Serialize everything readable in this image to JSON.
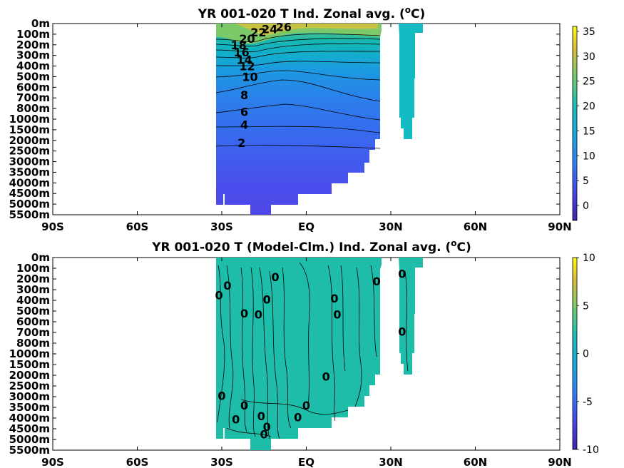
{
  "chart_data": [
    {
      "type": "heatmap",
      "title": "YR 001-020 T Ind. Zonal avg. (",
      "title_sup": "o",
      "title_unit": "C)",
      "x_ticks": [
        "90S",
        "60S",
        "30S",
        "EQ",
        "30N",
        "60N",
        "90N"
      ],
      "x_values": [
        -90,
        -60,
        -30,
        0,
        30,
        60,
        90
      ],
      "xlim": [
        -90,
        90
      ],
      "y_ticks": [
        "0m",
        "100m",
        "200m",
        "300m",
        "400m",
        "500m",
        "600m",
        "700m",
        "800m",
        "1000m",
        "1500m",
        "2000m",
        "2500m",
        "3000m",
        "3500m",
        "4000m",
        "4500m",
        "5000m",
        "5500m"
      ],
      "colorbar_ticks": [
        "35",
        "30",
        "25",
        "20",
        "15",
        "10",
        "5",
        "0"
      ],
      "colorbar_values": [
        35,
        30,
        25,
        20,
        15,
        10,
        5,
        0
      ],
      "clim": [
        -3,
        36
      ],
      "colormap": "parula",
      "contour_levels": [
        2,
        4,
        6,
        8,
        10,
        12,
        14,
        16,
        18,
        20,
        22,
        24,
        26
      ],
      "contour_labels": [
        {
          "text": "26",
          "lat": -8,
          "depth_level": 0.3
        },
        {
          "text": "24",
          "lat": -13,
          "depth_level": 0.5
        },
        {
          "text": "22",
          "lat": -17,
          "depth_level": 0.8
        },
        {
          "text": "20",
          "lat": -21,
          "depth_level": 1.4
        },
        {
          "text": "18",
          "lat": -24,
          "depth_level": 2.0
        },
        {
          "text": "16",
          "lat": -23,
          "depth_level": 2.7
        },
        {
          "text": "14",
          "lat": -22,
          "depth_level": 3.4
        },
        {
          "text": "12",
          "lat": -21,
          "depth_level": 4.0
        },
        {
          "text": "10",
          "lat": -20,
          "depth_level": 5.0
        },
        {
          "text": "8",
          "lat": -22,
          "depth_level": 6.7
        },
        {
          "text": "6",
          "lat": -22,
          "depth_level": 8.3
        },
        {
          "text": "4",
          "lat": -22,
          "depth_level": 9.5
        },
        {
          "text": "2",
          "lat": -23,
          "depth_level": 11.2
        }
      ]
    },
    {
      "type": "heatmap",
      "title": "YR 001-020 T (Model-Clm.) Ind. Zonal avg. (",
      "title_sup": "o",
      "title_unit": "C)",
      "x_ticks": [
        "90S",
        "60S",
        "30S",
        "EQ",
        "30N",
        "60N",
        "90N"
      ],
      "x_values": [
        -90,
        -60,
        -30,
        0,
        30,
        60,
        90
      ],
      "xlim": [
        -90,
        90
      ],
      "y_ticks": [
        "0m",
        "100m",
        "200m",
        "300m",
        "400m",
        "500m",
        "600m",
        "700m",
        "800m",
        "1000m",
        "1500m",
        "2000m",
        "2500m",
        "3000m",
        "3500m",
        "4000m",
        "4500m",
        "5000m",
        "5500m"
      ],
      "colorbar_ticks": [
        "10",
        "5",
        "0",
        "-5",
        "-10"
      ],
      "colorbar_values": [
        10,
        5,
        0,
        -5,
        -10
      ],
      "clim": [
        -10,
        10
      ],
      "colormap": "parula",
      "contour_levels": [
        0
      ],
      "contour_labels": [
        {
          "text": "0",
          "lat": -31,
          "depth_level": 3.5
        },
        {
          "text": "0",
          "lat": -28,
          "depth_level": 2.6
        },
        {
          "text": "0",
          "lat": -22,
          "depth_level": 5.2
        },
        {
          "text": "0",
          "lat": -17,
          "depth_level": 5.3
        },
        {
          "text": "0",
          "lat": -14,
          "depth_level": 3.9
        },
        {
          "text": "0",
          "lat": -11,
          "depth_level": 1.8
        },
        {
          "text": "0",
          "lat": 10,
          "depth_level": 3.8
        },
        {
          "text": "0",
          "lat": 11,
          "depth_level": 5.3
        },
        {
          "text": "0",
          "lat": 25,
          "depth_level": 2.2
        },
        {
          "text": "0",
          "lat": 34,
          "depth_level": 1.5
        },
        {
          "text": "0",
          "lat": 34,
          "depth_level": 6.9
        },
        {
          "text": "0",
          "lat": 7,
          "depth_level": 11.1
        },
        {
          "text": "0",
          "lat": -30,
          "depth_level": 12.9
        },
        {
          "text": "0",
          "lat": -22,
          "depth_level": 13.8
        },
        {
          "text": "0",
          "lat": -16,
          "depth_level": 14.8
        },
        {
          "text": "0",
          "lat": -25,
          "depth_level": 15.1
        },
        {
          "text": "0",
          "lat": -14,
          "depth_level": 15.8
        },
        {
          "text": "0",
          "lat": -15,
          "depth_level": 16.5
        },
        {
          "text": "0",
          "lat": -3,
          "depth_level": 14.9
        },
        {
          "text": "0",
          "lat": 0,
          "depth_level": 13.8
        }
      ]
    }
  ]
}
